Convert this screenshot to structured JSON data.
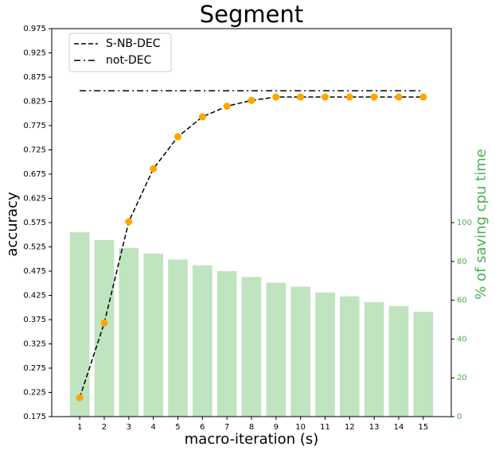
{
  "chart_data": {
    "type": "combo",
    "title": "Segment",
    "xlabel": "macro-iteration (s)",
    "ylabel": "accuracy",
    "y2label": "% of saving cpu time",
    "x": [
      1,
      2,
      3,
      4,
      5,
      6,
      7,
      8,
      9,
      10,
      11,
      12,
      13,
      14,
      15
    ],
    "xlim": [
      -0.14,
      16.14
    ],
    "xticks": [
      1,
      2,
      3,
      4,
      5,
      6,
      7,
      8,
      9,
      10,
      11,
      12,
      13,
      14,
      15
    ],
    "ylim": [
      0.175,
      0.975
    ],
    "yticks": [
      0.175,
      0.225,
      0.275,
      0.325,
      0.375,
      0.425,
      0.475,
      0.525,
      0.575,
      0.625,
      0.675,
      0.725,
      0.775,
      0.825,
      0.875,
      0.925,
      0.975
    ],
    "y2lim": [
      0,
      200
    ],
    "y2ticks": [
      0,
      20,
      40,
      60,
      80,
      100
    ],
    "y2color": "#4caf50",
    "legend": "upper left",
    "bars": {
      "type": "bar",
      "axis": "y2",
      "color": "#c0e3c0",
      "values": [
        95,
        91,
        87,
        84,
        81,
        78,
        75,
        72,
        69,
        67,
        64,
        62,
        59,
        57,
        54
      ]
    },
    "series": [
      {
        "name": "S-NB-DEC",
        "type": "line",
        "linestyle": "dashed",
        "color": "#000000",
        "marker_color": "#ffa500",
        "values": [
          0.214,
          0.368,
          0.577,
          0.686,
          0.752,
          0.793,
          0.815,
          0.827,
          0.834,
          0.834,
          0.834,
          0.834,
          0.834,
          0.834,
          0.834
        ]
      },
      {
        "name": "not-DEC",
        "type": "line",
        "linestyle": "dashdot",
        "color": "#000000",
        "values": [
          0.847,
          0.847,
          0.847,
          0.847,
          0.847,
          0.847,
          0.847,
          0.847,
          0.847,
          0.847,
          0.847,
          0.847,
          0.847,
          0.847,
          0.847
        ]
      }
    ]
  }
}
